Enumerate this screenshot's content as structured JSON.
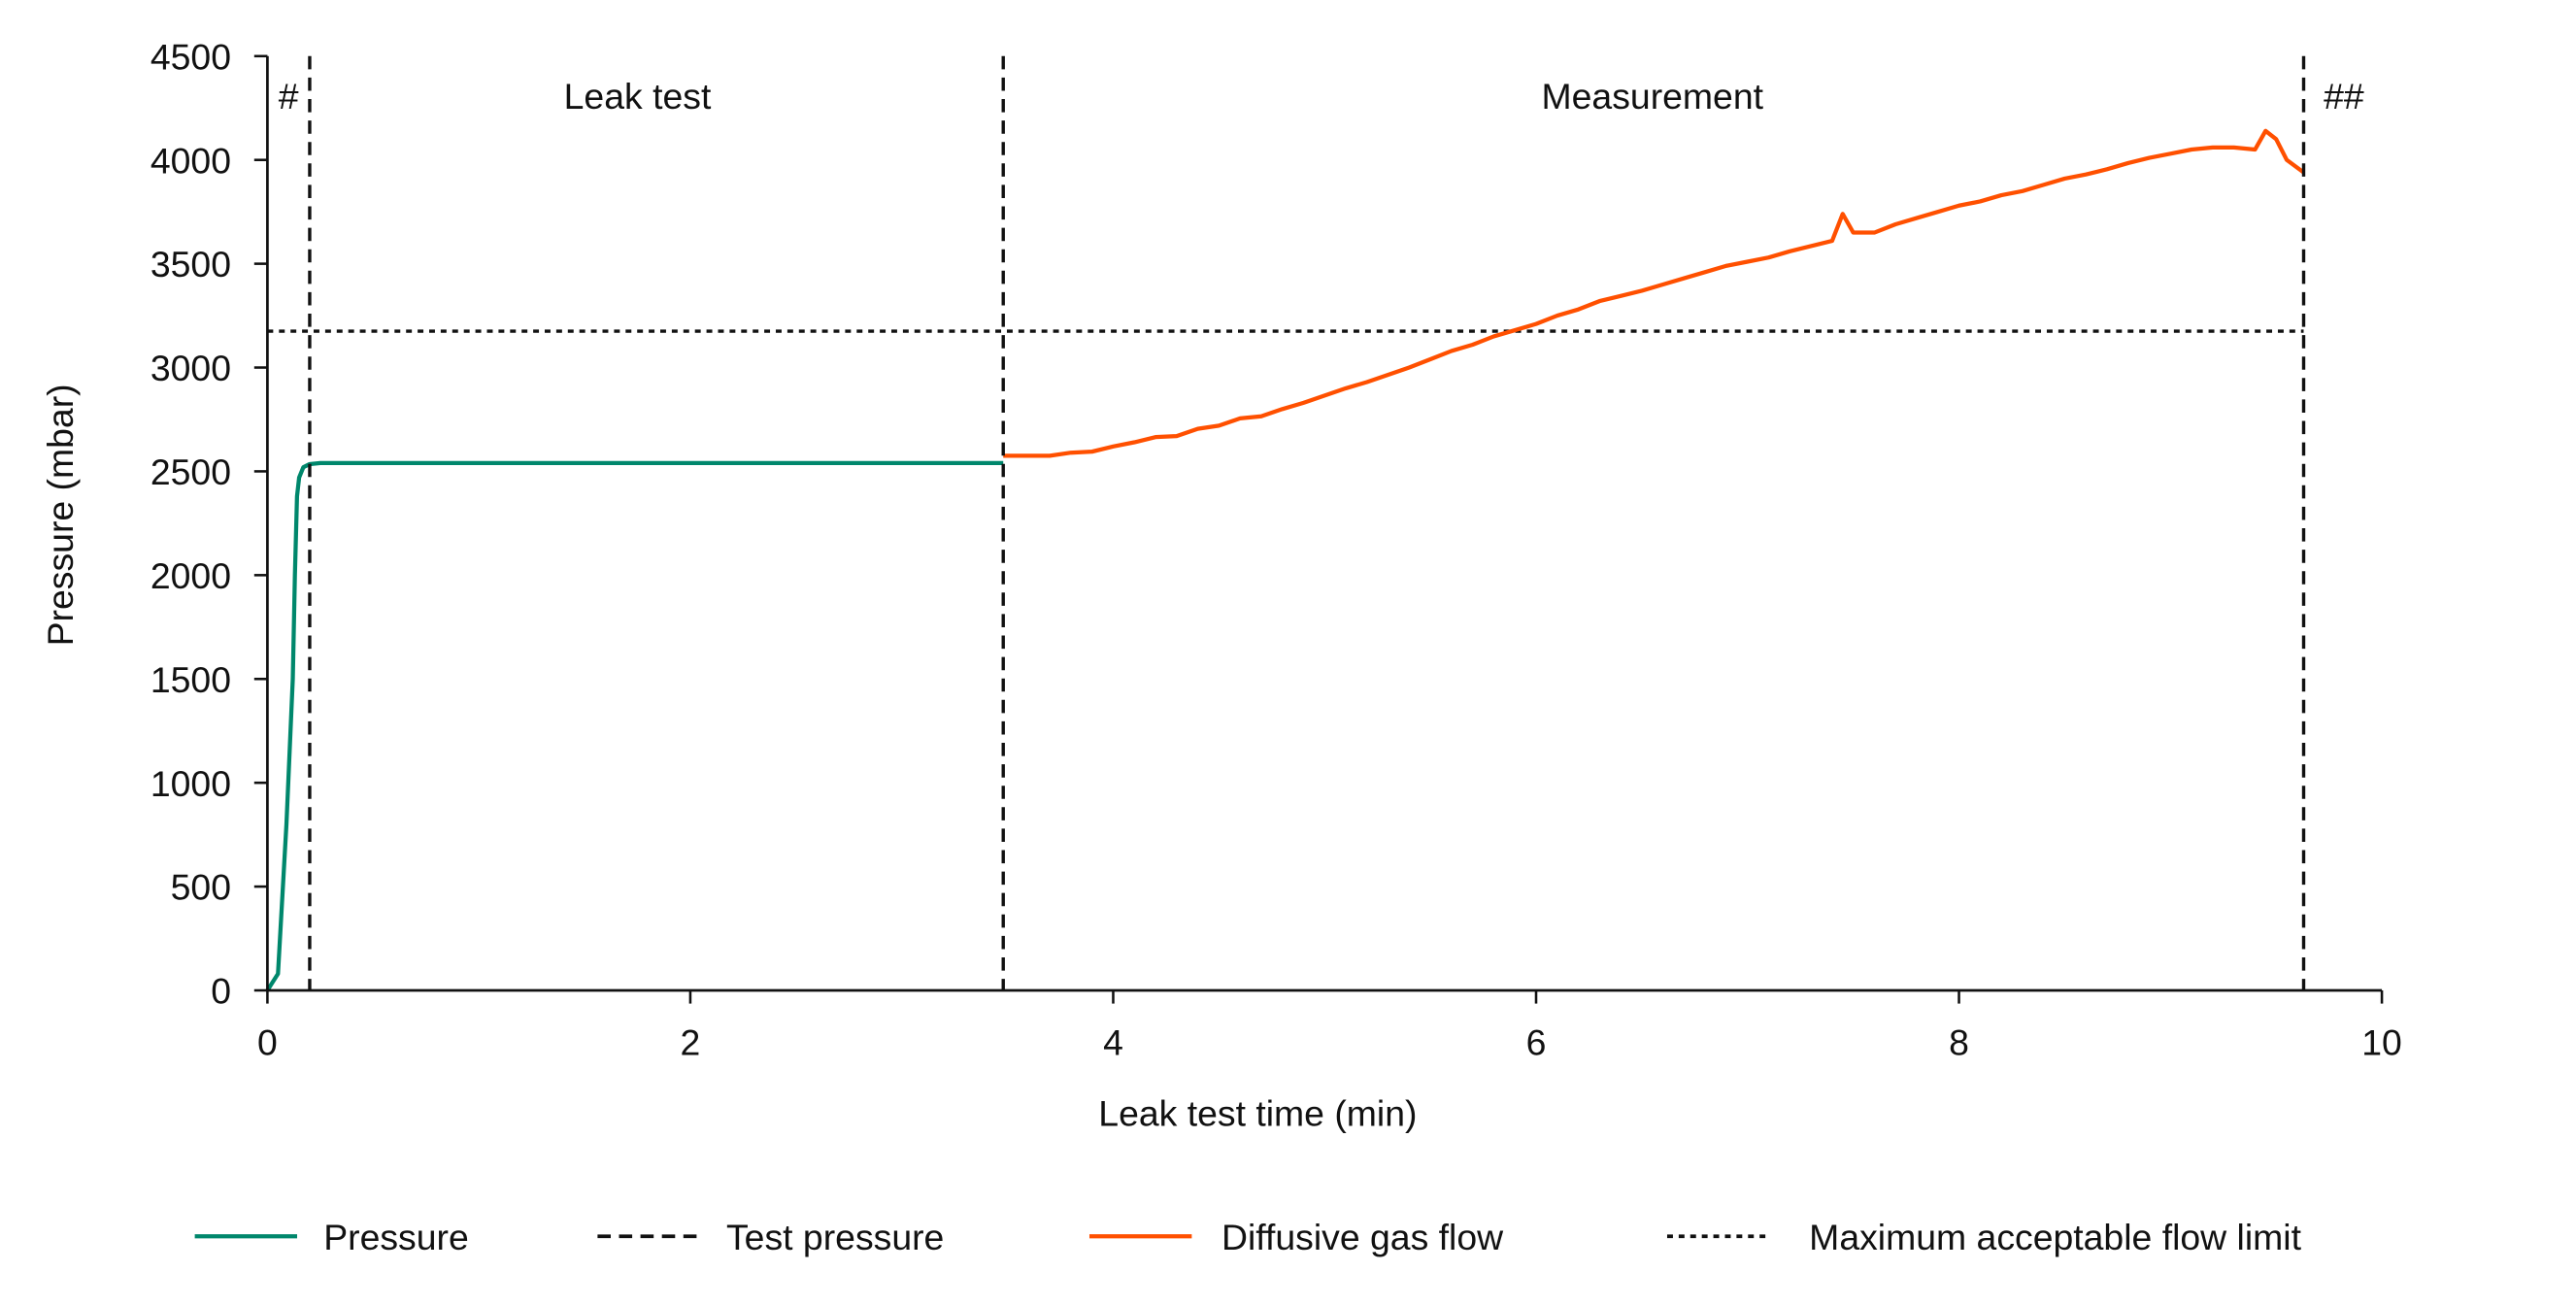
{
  "chart_data": {
    "type": "line",
    "xlabel": "Leak test time (min)",
    "ylabel": "Pressure (mbar)",
    "xlim": [
      0,
      10
    ],
    "ylim": [
      0,
      4500
    ],
    "x_ticks": [
      0,
      2,
      4,
      6,
      8,
      10
    ],
    "y_ticks": [
      0,
      500,
      1000,
      1500,
      2000,
      2500,
      3000,
      3500,
      4000,
      4500
    ],
    "grid": false,
    "legend_position": "bottom",
    "colors": {
      "pressure": "#00876C",
      "diffusive": "#FF5000",
      "lines": "#111111"
    },
    "annotations": [
      {
        "text": "#",
        "x": 0.1
      },
      {
        "text": "Leak test",
        "x": 1.75
      },
      {
        "text": "Measurement",
        "x": 6.55
      },
      {
        "text": "##",
        "x": 9.82
      }
    ],
    "series": [
      {
        "name": "Pressure",
        "style": "solid",
        "x": [
          0,
          0.05,
          0.09,
          0.12,
          0.13,
          0.14,
          0.15,
          0.17,
          0.2,
          0.25,
          3.48
        ],
        "y": [
          0,
          80,
          800,
          1500,
          2000,
          2380,
          2470,
          2520,
          2535,
          2540,
          2540
        ]
      },
      {
        "name": "Test pressure",
        "style": "dashed",
        "vertical_x": [
          0.2,
          3.48,
          9.63
        ]
      },
      {
        "name": "Diffusive gas flow",
        "style": "solid",
        "x": [
          3.48,
          3.6,
          3.7,
          3.8,
          3.9,
          4.0,
          4.1,
          4.2,
          4.3,
          4.4,
          4.5,
          4.6,
          4.7,
          4.8,
          4.9,
          5.0,
          5.1,
          5.2,
          5.3,
          5.4,
          5.5,
          5.6,
          5.7,
          5.8,
          5.9,
          6.0,
          6.1,
          6.2,
          6.3,
          6.4,
          6.5,
          6.6,
          6.7,
          6.8,
          6.9,
          7.0,
          7.1,
          7.2,
          7.3,
          7.4,
          7.45,
          7.5,
          7.6,
          7.7,
          7.8,
          7.9,
          8.0,
          8.1,
          8.2,
          8.3,
          8.4,
          8.5,
          8.6,
          8.7,
          8.8,
          8.9,
          9.0,
          9.1,
          9.2,
          9.3,
          9.4,
          9.45,
          9.5,
          9.55,
          9.63
        ],
        "y": [
          2575,
          2575,
          2575,
          2590,
          2595,
          2620,
          2640,
          2665,
          2670,
          2705,
          2720,
          2755,
          2765,
          2800,
          2830,
          2865,
          2900,
          2930,
          2965,
          3000,
          3040,
          3080,
          3110,
          3150,
          3180,
          3210,
          3250,
          3280,
          3320,
          3345,
          3370,
          3400,
          3430,
          3460,
          3490,
          3510,
          3530,
          3560,
          3585,
          3610,
          3740,
          3650,
          3650,
          3690,
          3720,
          3750,
          3780,
          3800,
          3830,
          3850,
          3880,
          3910,
          3930,
          3955,
          3985,
          4010,
          4030,
          4050,
          4060,
          4060,
          4050,
          4140,
          4100,
          4000,
          3940
        ]
      },
      {
        "name": "Maximum acceptable flow limit",
        "style": "dotted",
        "horizontal_y": 3175
      }
    ]
  }
}
